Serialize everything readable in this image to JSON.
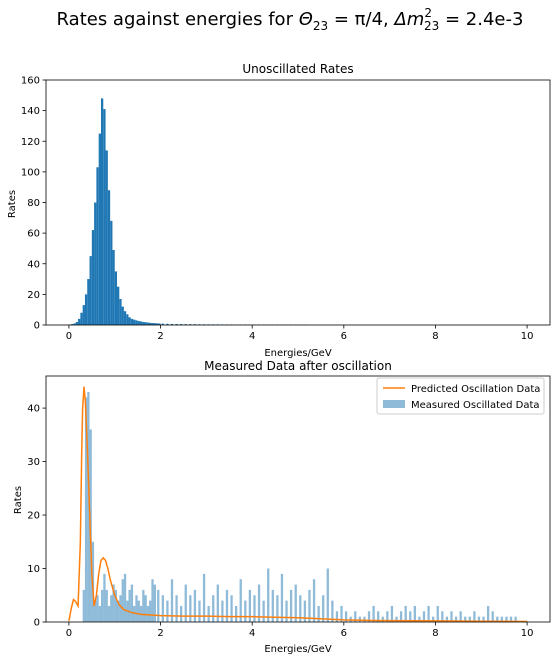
{
  "figure": {
    "suptitle_prefix": "Rates against energies for ",
    "suptitle_theta": "Θ",
    "suptitle_theta_sub": "23",
    "suptitle_theta_val": " = π/4, ",
    "suptitle_dm": "Δm",
    "suptitle_dm_sup": "2",
    "suptitle_dm_sub": "23",
    "suptitle_dm_val": " = 2.4e-3"
  },
  "chart_data": [
    {
      "type": "bar",
      "title": "Unoscillated Rates",
      "xlabel": "Energies/GeV",
      "ylabel": "Rates",
      "xlim": [
        -0.5,
        10.5
      ],
      "ylim": [
        0,
        160
      ],
      "xticks": [
        0,
        2,
        4,
        6,
        8,
        10
      ],
      "yticks": [
        0,
        20,
        40,
        60,
        80,
        100,
        120,
        140,
        160
      ],
      "bin_width": 0.05,
      "color": "#1f77b4",
      "bins": [
        [
          0.025,
          0.3
        ],
        [
          0.075,
          0.6
        ],
        [
          0.125,
          1
        ],
        [
          0.175,
          2
        ],
        [
          0.225,
          4
        ],
        [
          0.275,
          8
        ],
        [
          0.325,
          13
        ],
        [
          0.375,
          20
        ],
        [
          0.425,
          30
        ],
        [
          0.475,
          45
        ],
        [
          0.525,
          62
        ],
        [
          0.575,
          80
        ],
        [
          0.625,
          103
        ],
        [
          0.675,
          125
        ],
        [
          0.725,
          148
        ],
        [
          0.775,
          141
        ],
        [
          0.825,
          114
        ],
        [
          0.875,
          88
        ],
        [
          0.925,
          68
        ],
        [
          0.975,
          49
        ],
        [
          1.025,
          35
        ],
        [
          1.075,
          25
        ],
        [
          1.125,
          17
        ],
        [
          1.175,
          12
        ],
        [
          1.225,
          9
        ],
        [
          1.275,
          7
        ],
        [
          1.325,
          5
        ],
        [
          1.375,
          4
        ],
        [
          1.425,
          3.5
        ],
        [
          1.475,
          3
        ],
        [
          1.525,
          2.6
        ],
        [
          1.575,
          2.3
        ],
        [
          1.625,
          2
        ],
        [
          1.675,
          1.8
        ],
        [
          1.725,
          1.6
        ],
        [
          1.775,
          1.4
        ],
        [
          1.825,
          1.3
        ],
        [
          1.875,
          1.2
        ],
        [
          1.925,
          1.1
        ],
        [
          1.975,
          1.0
        ],
        [
          2.05,
          0.9
        ],
        [
          2.15,
          0.8
        ],
        [
          2.25,
          0.7
        ],
        [
          2.35,
          0.65
        ],
        [
          2.45,
          0.6
        ],
        [
          2.55,
          0.55
        ],
        [
          2.65,
          0.5
        ],
        [
          2.75,
          0.5
        ],
        [
          2.85,
          0.45
        ],
        [
          2.95,
          0.45
        ],
        [
          3.05,
          0.4
        ],
        [
          3.15,
          0.4
        ],
        [
          3.25,
          0.4
        ],
        [
          3.35,
          0.35
        ],
        [
          3.45,
          0.35
        ],
        [
          3.55,
          0.35
        ],
        [
          3.65,
          0.3
        ],
        [
          3.75,
          0.3
        ],
        [
          3.85,
          0.3
        ],
        [
          3.95,
          0.3
        ],
        [
          4.05,
          0.3
        ],
        [
          4.15,
          0.3
        ],
        [
          4.25,
          0.25
        ],
        [
          4.35,
          0.25
        ],
        [
          4.45,
          0.25
        ],
        [
          4.55,
          0.25
        ],
        [
          4.65,
          0.25
        ],
        [
          4.75,
          0.25
        ],
        [
          4.85,
          0.25
        ],
        [
          4.95,
          0.2
        ],
        [
          5.05,
          0.2
        ],
        [
          5.15,
          0.2
        ]
      ]
    },
    {
      "type": "bar+line",
      "title": "Measured Data after oscillation",
      "xlabel": "Energies/GeV",
      "ylabel": "Rates",
      "xlim": [
        -0.5,
        10.5
      ],
      "ylim": [
        0,
        46
      ],
      "xticks": [
        0,
        2,
        4,
        6,
        8,
        10
      ],
      "yticks": [
        0,
        10,
        20,
        30,
        40
      ],
      "legend_position": "top-right",
      "bin_width": 0.05,
      "series": [
        {
          "name": "Predicted Oscillation Data",
          "kind": "line",
          "color": "#ff7f0e",
          "points": [
            [
              0.0,
              0.2
            ],
            [
              0.05,
              2.5
            ],
            [
              0.1,
              4.2
            ],
            [
              0.15,
              3.8
            ],
            [
              0.2,
              3.0
            ],
            [
              0.25,
              15
            ],
            [
              0.28,
              32
            ],
            [
              0.3,
              40
            ],
            [
              0.33,
              44
            ],
            [
              0.36,
              41
            ],
            [
              0.4,
              33
            ],
            [
              0.45,
              21
            ],
            [
              0.5,
              9
            ],
            [
              0.55,
              3
            ],
            [
              0.6,
              5
            ],
            [
              0.65,
              9
            ],
            [
              0.7,
              11.5
            ],
            [
              0.75,
              12
            ],
            [
              0.8,
              11.5
            ],
            [
              0.85,
              10
            ],
            [
              0.9,
              8
            ],
            [
              1.0,
              5
            ],
            [
              1.1,
              3.2
            ],
            [
              1.2,
              2.3
            ],
            [
              1.4,
              1.7
            ],
            [
              1.6,
              1.4
            ],
            [
              1.8,
              1.3
            ],
            [
              2.0,
              1.2
            ],
            [
              2.5,
              1.1
            ],
            [
              3.0,
              1.1
            ],
            [
              3.5,
              1.0
            ],
            [
              4.0,
              1.0
            ],
            [
              4.5,
              0.9
            ],
            [
              5.0,
              0.8
            ],
            [
              5.5,
              0.6
            ],
            [
              6.0,
              0.4
            ],
            [
              6.5,
              0.3
            ],
            [
              7.0,
              0.25
            ],
            [
              8.0,
              0.2
            ],
            [
              9.0,
              0.15
            ],
            [
              10.0,
              0.1
            ]
          ]
        },
        {
          "name": "Measured Oscillated Data",
          "kind": "histogram",
          "color": "#1f77b4",
          "bins": [
            [
              0.325,
              6
            ],
            [
              0.375,
              42
            ],
            [
              0.425,
              43
            ],
            [
              0.475,
              36
            ],
            [
              0.525,
              15
            ],
            [
              0.575,
              4
            ],
            [
              0.625,
              5
            ],
            [
              0.675,
              3
            ],
            [
              0.725,
              6
            ],
            [
              0.775,
              9
            ],
            [
              0.825,
              6
            ],
            [
              0.875,
              3
            ],
            [
              0.925,
              5
            ],
            [
              0.975,
              7
            ],
            [
              1.025,
              6
            ],
            [
              1.075,
              4
            ],
            [
              1.125,
              5
            ],
            [
              1.175,
              8
            ],
            [
              1.225,
              9
            ],
            [
              1.275,
              4
            ],
            [
              1.325,
              6
            ],
            [
              1.375,
              7
            ],
            [
              1.425,
              3
            ],
            [
              1.475,
              5
            ],
            [
              1.525,
              4
            ],
            [
              1.575,
              3
            ],
            [
              1.625,
              6
            ],
            [
              1.675,
              5
            ],
            [
              1.725,
              3
            ],
            [
              1.775,
              4
            ],
            [
              1.825,
              8
            ],
            [
              1.875,
              7
            ],
            [
              1.95,
              6
            ],
            [
              2.05,
              5
            ],
            [
              2.15,
              4
            ],
            [
              2.25,
              8
            ],
            [
              2.35,
              5
            ],
            [
              2.45,
              3
            ],
            [
              2.55,
              7
            ],
            [
              2.65,
              5
            ],
            [
              2.75,
              6
            ],
            [
              2.85,
              4
            ],
            [
              2.95,
              9
            ],
            [
              3.05,
              3
            ],
            [
              3.15,
              5
            ],
            [
              3.25,
              7
            ],
            [
              3.35,
              4
            ],
            [
              3.45,
              6
            ],
            [
              3.55,
              5
            ],
            [
              3.65,
              3
            ],
            [
              3.75,
              8
            ],
            [
              3.85,
              4
            ],
            [
              3.95,
              6
            ],
            [
              4.05,
              5
            ],
            [
              4.15,
              7
            ],
            [
              4.25,
              4
            ],
            [
              4.35,
              10
            ],
            [
              4.45,
              6
            ],
            [
              4.55,
              5
            ],
            [
              4.65,
              9
            ],
            [
              4.75,
              4
            ],
            [
              4.85,
              6
            ],
            [
              4.95,
              7
            ],
            [
              5.05,
              5
            ],
            [
              5.15,
              4
            ],
            [
              5.25,
              6
            ],
            [
              5.35,
              8
            ],
            [
              5.45,
              3
            ],
            [
              5.55,
              5
            ],
            [
              5.65,
              10
            ],
            [
              5.75,
              4
            ],
            [
              5.85,
              2
            ],
            [
              5.95,
              3
            ],
            [
              6.05,
              2
            ],
            [
              6.15,
              1
            ],
            [
              6.25,
              2
            ],
            [
              6.35,
              1
            ],
            [
              6.45,
              1
            ],
            [
              6.55,
              2
            ],
            [
              6.65,
              3
            ],
            [
              6.75,
              2
            ],
            [
              6.85,
              1
            ],
            [
              6.95,
              2
            ],
            [
              7.05,
              3
            ],
            [
              7.15,
              1
            ],
            [
              7.25,
              2
            ],
            [
              7.35,
              3
            ],
            [
              7.45,
              2
            ],
            [
              7.55,
              3
            ],
            [
              7.65,
              1
            ],
            [
              7.75,
              2
            ],
            [
              7.85,
              3
            ],
            [
              7.95,
              1
            ],
            [
              8.05,
              3
            ],
            [
              8.15,
              2
            ],
            [
              8.25,
              1
            ],
            [
              8.35,
              2
            ],
            [
              8.45,
              1
            ],
            [
              8.55,
              2
            ],
            [
              8.65,
              1
            ],
            [
              8.75,
              1
            ],
            [
              8.85,
              2
            ],
            [
              8.95,
              1
            ],
            [
              9.05,
              1
            ],
            [
              9.15,
              3
            ],
            [
              9.25,
              2
            ],
            [
              9.35,
              1
            ],
            [
              9.45,
              1
            ],
            [
              9.55,
              1
            ],
            [
              9.65,
              1
            ],
            [
              9.75,
              1
            ]
          ]
        }
      ]
    }
  ]
}
